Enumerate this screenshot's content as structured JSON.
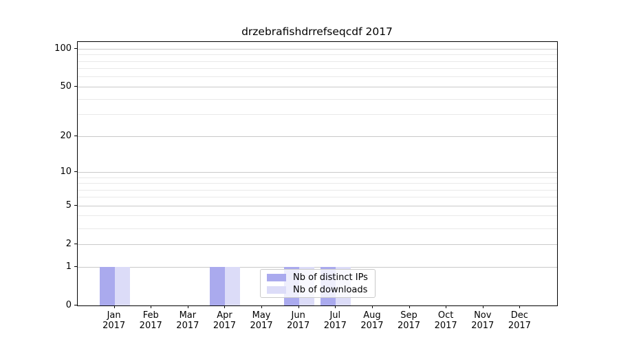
{
  "figure": {
    "background_color": "#ffffff"
  },
  "chart_data": {
    "type": "bar",
    "title": "drzebrafishdrrefseqcdf 2017",
    "categories": [
      "Jan 2017",
      "Feb 2017",
      "Mar 2017",
      "Apr 2017",
      "May 2017",
      "Jun 2017",
      "Jul 2017",
      "Aug 2017",
      "Sep 2017",
      "Oct 2017",
      "Nov 2017",
      "Dec 2017"
    ],
    "x_tick_month_labels": [
      "Jan",
      "Feb",
      "Mar",
      "Apr",
      "May",
      "Jun",
      "Jul",
      "Aug",
      "Sep",
      "Oct",
      "Nov",
      "Dec"
    ],
    "x_tick_year_label": "2017",
    "series": [
      {
        "name": "Nb of distinct IPs",
        "color": "#aaaaee",
        "values": [
          1,
          0,
          0,
          1,
          0,
          1,
          1,
          0,
          0,
          0,
          0,
          0
        ]
      },
      {
        "name": "Nb of downloads",
        "color": "#dcdcf8",
        "values": [
          1,
          0,
          0,
          1,
          0,
          1,
          1,
          0,
          0,
          0,
          0,
          0
        ]
      }
    ],
    "xlabel": "",
    "ylabel": "",
    "y_scale": "log10(1+y)",
    "ylim": [
      0,
      113
    ],
    "y_major_ticks": [
      0,
      1,
      2,
      5,
      10,
      20,
      50,
      100
    ],
    "y_major_tick_labels": [
      "0",
      "1",
      "2",
      "5",
      "10",
      "20",
      "50",
      "100"
    ],
    "y_minor_gridlines": [
      3,
      4,
      6,
      7,
      8,
      9,
      30,
      40,
      60,
      70,
      80,
      90
    ],
    "grid": true,
    "legend_position": "lower center inside plot",
    "colors": {
      "major_grid": "#c9c9c9",
      "minor_grid": "#e9e9e9",
      "axis": "#000000",
      "text": "#000000"
    }
  },
  "legend": {
    "entries": [
      {
        "label": "Nb of distinct IPs"
      },
      {
        "label": "Nb of downloads"
      }
    ]
  }
}
